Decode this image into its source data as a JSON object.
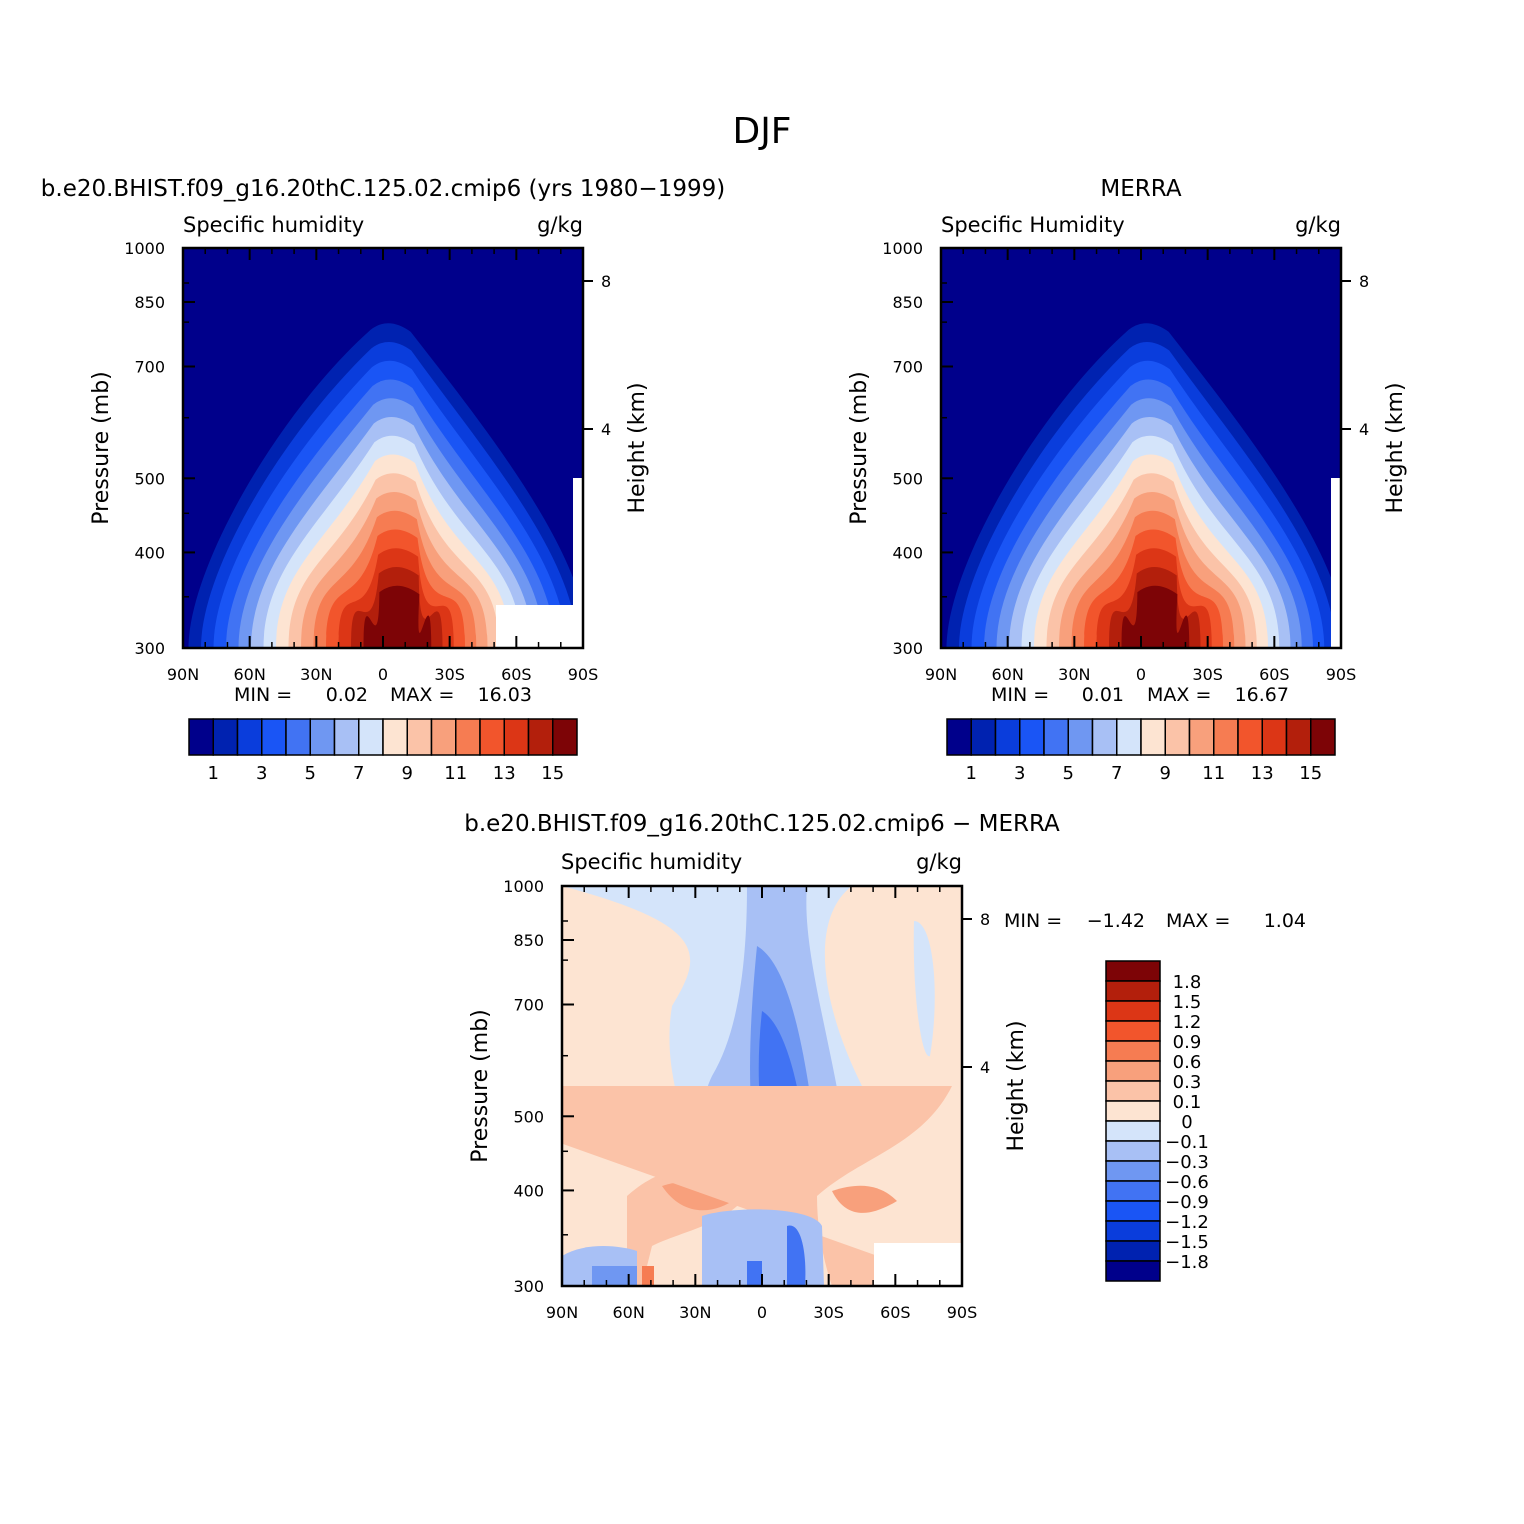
{
  "figure_title": "DJF",
  "chart_data": [
    {
      "type": "heatmap",
      "panel_title": "b.e20.BHIST.f09_g16.20thC.125.02.cmip6 (yrs 1980−1999)",
      "left_string": "Specific humidity",
      "right_string": "g/kg",
      "xlabel": "",
      "ylabel": "Pressure (mb)",
      "ylabel_right": "Height (km)",
      "x_ticks": [
        "90N",
        "60N",
        "30N",
        "0",
        "30S",
        "60S",
        "90S"
      ],
      "y_ticks": [
        "300",
        "400",
        "500",
        "700",
        "850",
        "1000"
      ],
      "y_right_ticks": [
        "8",
        "4"
      ],
      "ylim": [
        1000,
        300
      ],
      "xlim": [
        90,
        -90
      ],
      "min_label": "MIN =",
      "min_value": "0.02",
      "max_label": "MAX =",
      "max_value": "16.03",
      "peak_value": 16.03,
      "colorbar": {
        "orientation": "horizontal",
        "labels": [
          "1",
          "3",
          "5",
          "7",
          "9",
          "11",
          "13",
          "15"
        ],
        "colors": [
          "#00008b",
          "#0022b0",
          "#0a3ddc",
          "#1a55f5",
          "#4173f3",
          "#6f97f2",
          "#a8c0f5",
          "#d4e4fa",
          "#fde4d2",
          "#fbc3a8",
          "#f8a07c",
          "#f67c52",
          "#f2552c",
          "#dc3616",
          "#b31f0c",
          "#7d0406"
        ]
      }
    },
    {
      "type": "heatmap",
      "panel_title": "MERRA",
      "left_string": "Specific Humidity",
      "right_string": "g/kg",
      "xlabel": "",
      "ylabel": "Pressure (mb)",
      "ylabel_right": "Height (km)",
      "x_ticks": [
        "90N",
        "60N",
        "30N",
        "0",
        "30S",
        "60S",
        "90S"
      ],
      "y_ticks": [
        "300",
        "400",
        "500",
        "700",
        "850",
        "1000"
      ],
      "y_right_ticks": [
        "8",
        "4"
      ],
      "ylim": [
        1000,
        300
      ],
      "xlim": [
        90,
        -90
      ],
      "min_label": "MIN =",
      "min_value": "0.01",
      "max_label": "MAX =",
      "max_value": "16.67",
      "peak_value": 16.67,
      "colorbar": {
        "orientation": "horizontal",
        "labels": [
          "1",
          "3",
          "5",
          "7",
          "9",
          "11",
          "13",
          "15"
        ],
        "colors": [
          "#00008b",
          "#0022b0",
          "#0a3ddc",
          "#1a55f5",
          "#4173f3",
          "#6f97f2",
          "#a8c0f5",
          "#d4e4fa",
          "#fde4d2",
          "#fbc3a8",
          "#f8a07c",
          "#f67c52",
          "#f2552c",
          "#dc3616",
          "#b31f0c",
          "#7d0406"
        ]
      }
    },
    {
      "type": "heatmap",
      "panel_title": "b.e20.BHIST.f09_g16.20thC.125.02.cmip6 − MERRA",
      "left_string": "Specific humidity",
      "right_string": "g/kg",
      "xlabel": "",
      "ylabel": "Pressure (mb)",
      "ylabel_right": "Height (km)",
      "x_ticks": [
        "90N",
        "60N",
        "30N",
        "0",
        "30S",
        "60S",
        "90S"
      ],
      "y_ticks": [
        "300",
        "400",
        "500",
        "700",
        "850",
        "1000"
      ],
      "y_right_ticks": [
        "8",
        "4"
      ],
      "ylim": [
        1000,
        300
      ],
      "xlim": [
        90,
        -90
      ],
      "min_label": "MIN =",
      "min_value": "−1.42",
      "max_label": "MAX =",
      "max_value": "1.04",
      "colorbar": {
        "orientation": "vertical",
        "labels": [
          "1.8",
          "1.5",
          "1.2",
          "0.9",
          "0.6",
          "0.3",
          "0.1",
          "0",
          "−0.1",
          "−0.3",
          "−0.6",
          "−0.9",
          "−1.2",
          "−1.5",
          "−1.8"
        ],
        "colors": [
          "#7d0406",
          "#b31f0c",
          "#dc3616",
          "#f2552c",
          "#f67c52",
          "#f8a07c",
          "#fbc3a8",
          "#fde4d2",
          "#d4e4fa",
          "#a8c0f5",
          "#6f97f2",
          "#4173f3",
          "#1a55f5",
          "#0a3ddc",
          "#0022b0",
          "#00008b"
        ]
      }
    }
  ]
}
